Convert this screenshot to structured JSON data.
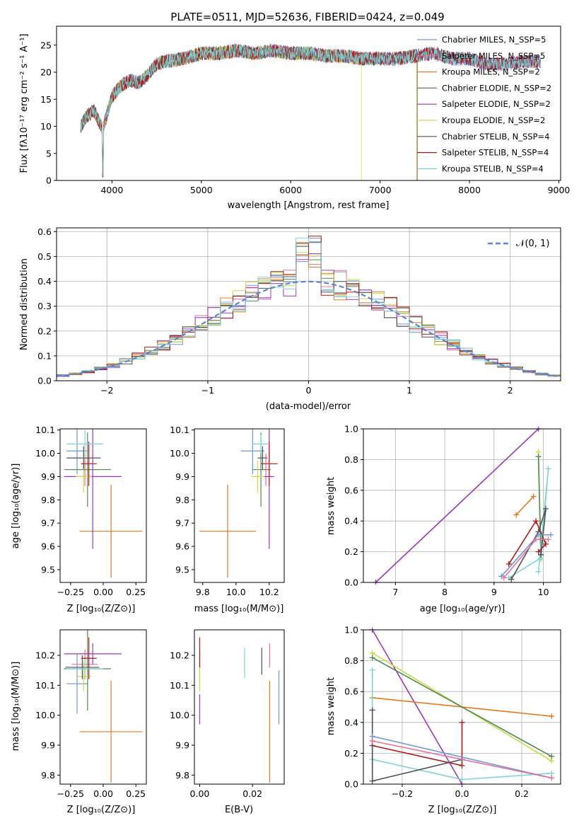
{
  "chart_data": [
    {
      "type": "line",
      "title": "PLATE=0511, MJD=52636, FIBERID=0424, z=0.049",
      "xlabel": "wavelength [Angstrom, rest frame]",
      "ylabel": "Flux [fλ10⁻¹⁷ erg cm⁻² s⁻¹ A⁻¹]",
      "xlim": [
        3380,
        9020
      ],
      "ylim": [
        0,
        28.5
      ],
      "xticks": [
        "4000",
        "5000",
        "6000",
        "7000",
        "8000",
        "9000"
      ],
      "yticks": [
        "0",
        "5",
        "10",
        "15",
        "20",
        "25"
      ],
      "legend_position": "upper-right",
      "spectrum_shape": {
        "x": [
          3650,
          3700,
          3800,
          3850,
          3900,
          3950,
          4000,
          4100,
          4200,
          4300,
          4400,
          4500,
          4600,
          4800,
          5000,
          5200,
          5400,
          5600,
          5800,
          6000,
          6200,
          6400,
          6600,
          6800,
          7000,
          7200,
          7400,
          7600,
          7800,
          8000,
          8200,
          8400,
          8600,
          8800
        ],
        "y": [
          10,
          11.5,
          13,
          11,
          9.5,
          12.5,
          15.5,
          17.5,
          18.5,
          18,
          19.5,
          21.5,
          22,
          22.5,
          23.5,
          23.5,
          24,
          23.5,
          24,
          23.5,
          23.5,
          23,
          23,
          22.5,
          22.5,
          22.5,
          23,
          23.5,
          22.5,
          22.5,
          21.5,
          21.5,
          22,
          22
        ]
      },
      "series": [
        {
          "name": "Chabrier MILES, N_SSP=5",
          "color": "#6e98d8",
          "drop_at": null
        },
        {
          "name": "Salpeter MILES, N_SSP=5",
          "color": "#e8719a",
          "drop_at": null
        },
        {
          "name": "Kroupa MILES, N_SSP=2",
          "color": "#e07b20",
          "drop_at": 7410
        },
        {
          "name": "Chabrier ELODIE, N_SSP=2",
          "color": "#4f8a4f",
          "drop_at": 7420
        },
        {
          "name": "Salpeter ELODIE, N_SSP=2",
          "color": "#9a38b8",
          "drop_at": null
        },
        {
          "name": "Kroupa ELODIE, N_SSP=2",
          "color": "#cadc48",
          "drop_at": 6790
        },
        {
          "name": "Chabrier STELIB, N_SSP=4",
          "color": "#505050",
          "drop_at": null
        },
        {
          "name": "Salpeter STELIB, N_SSP=4",
          "color": "#b01818",
          "drop_at": null
        },
        {
          "name": "Kroupa STELIB, N_SSP=4",
          "color": "#7fd3d6",
          "drop_at": null
        }
      ]
    },
    {
      "type": "histogram",
      "xlabel": "(data-model)/error",
      "ylabel": "Normed distribution",
      "xlim": [
        -2.5,
        2.5
      ],
      "ylim": [
        0,
        0.615
      ],
      "xticks": [
        "−2",
        "−1",
        "0",
        "1",
        "2"
      ],
      "yticks": [
        "0.0",
        "0.1",
        "0.2",
        "0.3",
        "0.4",
        "0.5",
        "0.6"
      ],
      "grid": true,
      "legend_position": "upper-right",
      "reference_curve": {
        "name": "𝒩(0, 1)",
        "color": "#5b86d8",
        "mean": 0,
        "sigma": 1
      },
      "bin_edges_range": [
        -2.5,
        2.5
      ],
      "bin_count": 40,
      "series_colors": [
        "#6e98d8",
        "#e8719a",
        "#e07b20",
        "#4f8a4f",
        "#9a38b8",
        "#cadc48",
        "#505050",
        "#b01818",
        "#7fd3d6"
      ]
    },
    {
      "type": "scatter-errorbar",
      "xlabel": "Z [log₁₀(Z/Z⊙)]",
      "ylabel": "age  [log₁₀(age/yr)]",
      "xlim": [
        -0.33,
        0.33
      ],
      "ylim": [
        9.445,
        10.105
      ],
      "xticks": [
        "−0.25",
        "0.00",
        "0.25"
      ],
      "yticks": [
        "9.5",
        "9.6",
        "9.7",
        "9.8",
        "9.9",
        "10.0",
        "10.1"
      ],
      "points": [
        {
          "color": "#6e98d8",
          "x": -0.2,
          "xerr": 0.08,
          "y": 10.01,
          "yerr": 0.1
        },
        {
          "color": "#e8719a",
          "x": -0.14,
          "xerr": 0.1,
          "y": 9.93,
          "yerr": 0.07
        },
        {
          "color": "#e07b20",
          "x": 0.06,
          "xerr": 0.24,
          "y": 9.665,
          "yerr": 0.2
        },
        {
          "color": "#4f8a4f",
          "x": -0.12,
          "xerr": 0.18,
          "y": 9.93,
          "yerr": 0.16
        },
        {
          "color": "#9a38b8",
          "x": -0.08,
          "xerr": 0.22,
          "y": 9.9,
          "yerr": 0.31
        },
        {
          "color": "#cadc48",
          "x": -0.15,
          "xerr": 0.06,
          "y": 9.9,
          "yerr": 0.07
        },
        {
          "color": "#505050",
          "x": -0.15,
          "xerr": 0.13,
          "y": 9.98,
          "yerr": 0.05
        },
        {
          "color": "#b01818",
          "x": -0.11,
          "xerr": 0.06,
          "y": 9.955,
          "yerr": 0.095
        },
        {
          "color": "#7fd3d6",
          "x": -0.14,
          "xerr": 0.14,
          "y": 10.04,
          "yerr": 0.06
        }
      ]
    },
    {
      "type": "scatter-errorbar",
      "xlabel": "mass [log₁₀(M/M⊙)]",
      "ylabel": "",
      "xlim": [
        9.75,
        10.29
      ],
      "ylim": [
        9.445,
        10.105
      ],
      "xticks": [
        "9.8",
        "10.0",
        "10.2"
      ],
      "yticks": [
        "9.5",
        "9.6",
        "9.7",
        "9.8",
        "9.9",
        "10.0",
        "10.1"
      ],
      "points": [
        {
          "color": "#6e98d8",
          "x": 10.1,
          "xerr": 0.07,
          "y": 10.01,
          "yerr": 0.1
        },
        {
          "color": "#e8719a",
          "x": 10.18,
          "xerr": 0.03,
          "y": 9.93,
          "yerr": 0.07
        },
        {
          "color": "#e07b20",
          "x": 9.95,
          "xerr": 0.17,
          "y": 9.665,
          "yerr": 0.2
        },
        {
          "color": "#4f8a4f",
          "x": 10.15,
          "xerr": 0.05,
          "y": 9.93,
          "yerr": 0.16
        },
        {
          "color": "#9a38b8",
          "x": 10.2,
          "xerr": 0.03,
          "y": 9.9,
          "yerr": 0.31
        },
        {
          "color": "#cadc48",
          "x": 10.13,
          "xerr": 0.04,
          "y": 9.9,
          "yerr": 0.07
        },
        {
          "color": "#505050",
          "x": 10.16,
          "xerr": 0.03,
          "y": 9.98,
          "yerr": 0.05
        },
        {
          "color": "#b01818",
          "x": 10.2,
          "xerr": 0.05,
          "y": 9.955,
          "yerr": 0.095
        },
        {
          "color": "#7fd3d6",
          "x": 10.15,
          "xerr": 0.05,
          "y": 10.04,
          "yerr": 0.04
        }
      ]
    },
    {
      "type": "line",
      "xlabel": "age  [log₁₀(age/yr)]",
      "ylabel": "mass weight",
      "xlim": [
        6.35,
        10.35
      ],
      "ylim": [
        0,
        1.0
      ],
      "xticks": [
        "7",
        "8",
        "9",
        "10"
      ],
      "yticks": [
        "0.0",
        "0.2",
        "0.4",
        "0.6",
        "0.8",
        "1.0"
      ],
      "grid": true,
      "series": [
        {
          "color": "#9a38b8",
          "x": [
            6.6,
            9.9
          ],
          "y": [
            0.0,
            1.0
          ]
        },
        {
          "color": "#e07b20",
          "x": [
            9.45,
            9.8
          ],
          "y": [
            0.44,
            0.56
          ]
        },
        {
          "color": "#cadc48",
          "x": [
            9.95,
            9.9,
            9.95
          ],
          "y": [
            0.15,
            0.85,
            0.15
          ]
        },
        {
          "color": "#4f8a4f",
          "x": [
            9.9,
            9.95
          ],
          "y": [
            0.82,
            0.18
          ]
        },
        {
          "color": "#7fd3d6",
          "x": [
            9.3,
            9.95,
            10.1,
            9.9
          ],
          "y": [
            0.03,
            0.16,
            0.74,
            0.07
          ]
        },
        {
          "color": "#b01818",
          "x": [
            9.3,
            9.85,
            10.05,
            9.9
          ],
          "y": [
            0.12,
            0.4,
            0.25,
            0.2
          ]
        },
        {
          "color": "#505050",
          "x": [
            9.35,
            9.9,
            10.05,
            9.95
          ],
          "y": [
            0.02,
            0.33,
            0.48,
            0.18
          ]
        },
        {
          "color": "#6e98d8",
          "x": [
            9.15,
            9.9,
            10.15
          ],
          "y": [
            0.04,
            0.31,
            0.31
          ]
        },
        {
          "color": "#e8719a",
          "x": [
            9.2,
            9.85,
            10.1
          ],
          "y": [
            0.03,
            0.28,
            0.28
          ]
        }
      ]
    },
    {
      "type": "scatter-errorbar",
      "xlabel": "Z [log₁₀(Z/Z⊙)]",
      "ylabel": "mass [log₁₀(M/M⊙)]",
      "xlim": [
        -0.33,
        0.33
      ],
      "ylim": [
        9.77,
        10.285
      ],
      "xticks": [
        "−0.25",
        "0.00",
        "0.25"
      ],
      "yticks": [
        "9.8",
        "9.9",
        "10.0",
        "10.1",
        "10.2"
      ],
      "points": [
        {
          "color": "#6e98d8",
          "x": -0.2,
          "xerr": 0.08,
          "y": 10.105,
          "yerr": 0.1
        },
        {
          "color": "#e8719a",
          "x": -0.14,
          "xerr": 0.1,
          "y": 10.17,
          "yerr": 0.05
        },
        {
          "color": "#e07b20",
          "x": 0.06,
          "xerr": 0.24,
          "y": 9.945,
          "yerr": 0.17
        },
        {
          "color": "#4f8a4f",
          "x": -0.12,
          "xerr": 0.18,
          "y": 10.155,
          "yerr": 0.14
        },
        {
          "color": "#9a38b8",
          "x": -0.08,
          "xerr": 0.22,
          "y": 10.205,
          "yerr": 0.035
        },
        {
          "color": "#cadc48",
          "x": -0.15,
          "xerr": 0.06,
          "y": 10.13,
          "yerr": 0.05
        },
        {
          "color": "#505050",
          "x": -0.16,
          "xerr": 0.13,
          "y": 10.16,
          "yerr": 0.04
        },
        {
          "color": "#b01818",
          "x": -0.11,
          "xerr": 0.06,
          "y": 10.19,
          "yerr": 0.07
        },
        {
          "color": "#7fd3d6",
          "x": -0.14,
          "xerr": 0.14,
          "y": 10.155,
          "yerr": 0.03
        }
      ]
    },
    {
      "type": "scatter-errorbar",
      "xlabel": "E(B-V)",
      "ylabel": "",
      "xlim": [
        -0.002,
        0.032
      ],
      "ylim": [
        9.77,
        10.285
      ],
      "xticks": [
        "0.00",
        "0.02"
      ],
      "yticks": [
        "9.8",
        "9.9",
        "10.0",
        "10.1",
        "10.2"
      ],
      "points": [
        {
          "color": "#6e98d8",
          "x": 0.03,
          "xerr": 0,
          "y": 10.06,
          "yerr": 0.09
        },
        {
          "color": "#e8719a",
          "x": 0.0265,
          "xerr": 0,
          "y": 10.2,
          "yerr": 0.04
        },
        {
          "color": "#e07b20",
          "x": 0.0265,
          "xerr": 0,
          "y": 9.945,
          "yerr": 0.17
        },
        {
          "color": "#4f8a4f",
          "x": 0.0,
          "xerr": 0,
          "y": 10.155,
          "yerr": 0.06
        },
        {
          "color": "#9a38b8",
          "x": 0.0,
          "xerr": 0,
          "y": 10.02,
          "yerr": 0.05
        },
        {
          "color": "#cadc48",
          "x": 0.0,
          "xerr": 0,
          "y": 10.13,
          "yerr": 0.05
        },
        {
          "color": "#505050",
          "x": 0.0235,
          "xerr": 0,
          "y": 10.18,
          "yerr": 0.045
        },
        {
          "color": "#b01818",
          "x": 0.0,
          "xerr": 0,
          "y": 10.21,
          "yerr": 0.05
        },
        {
          "color": "#7fd3d6",
          "x": 0.017,
          "xerr": 0,
          "y": 10.175,
          "yerr": 0.05
        }
      ]
    },
    {
      "type": "line",
      "xlabel": "Z [log₁₀(Z/Z⊙)]",
      "ylabel": "mass weight",
      "xlim": [
        -0.33,
        0.33
      ],
      "ylim": [
        0,
        1.0
      ],
      "xticks": [
        "−0.2",
        "0.0",
        "0.2"
      ],
      "yticks": [
        "0.0",
        "0.2",
        "0.4",
        "0.6",
        "0.8",
        "1.0"
      ],
      "grid": true,
      "series": [
        {
          "color": "#9a38b8",
          "x": [
            -0.3,
            0.0
          ],
          "y": [
            1.0,
            0.0
          ]
        },
        {
          "color": "#e07b20",
          "x": [
            -0.3,
            0.3
          ],
          "y": [
            0.56,
            0.44
          ]
        },
        {
          "color": "#cadc48",
          "x": [
            -0.3,
            0.3
          ],
          "y": [
            0.85,
            0.15
          ]
        },
        {
          "color": "#4f8a4f",
          "x": [
            -0.3,
            0.3
          ],
          "y": [
            0.82,
            0.18
          ]
        },
        {
          "color": "#7fd3d6",
          "x": [
            -0.3,
            -0.3,
            0.0,
            0.3
          ],
          "y": [
            0.74,
            0.16,
            0.03,
            0.07
          ]
        },
        {
          "color": "#b01818",
          "x": [
            -0.3,
            0.0,
            0.0
          ],
          "y": [
            0.25,
            0.12,
            0.4
          ]
        },
        {
          "color": "#505050",
          "x": [
            -0.3,
            -0.3,
            0.0
          ],
          "y": [
            0.48,
            0.02,
            0.16
          ]
        },
        {
          "color": "#6e98d8",
          "x": [
            -0.3,
            0.3
          ],
          "y": [
            0.31,
            0.04
          ]
        },
        {
          "color": "#e8719a",
          "x": [
            -0.3,
            0.3
          ],
          "y": [
            0.28,
            0.04
          ]
        }
      ]
    }
  ]
}
